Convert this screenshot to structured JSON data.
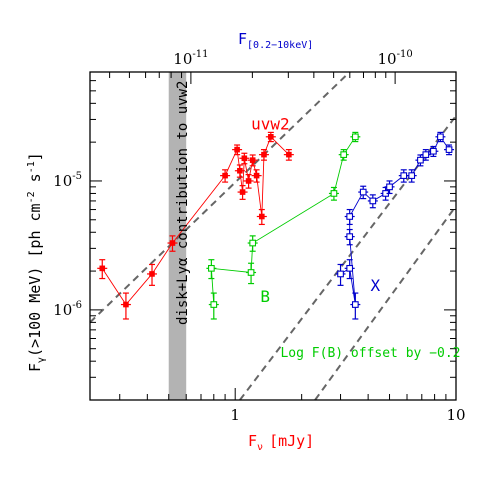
{
  "chart_data": {
    "type": "scatter",
    "x_axis": {
      "label": "F",
      "label_sub": "ν",
      "label_unit": "[mJy]",
      "scale": "log",
      "range": [
        0.22,
        10
      ],
      "ticks": [
        {
          "value": 1,
          "label": "1"
        },
        {
          "value": 10,
          "label": "10"
        }
      ],
      "color": "#ff0000"
    },
    "y_axis": {
      "label": "F",
      "label_sub": "γ",
      "label_rest": "(>100 MeV) [ph cm",
      "label_sup1": "-2",
      "label_mid": " s",
      "label_sup2": "-1",
      "label_end": "]",
      "scale": "log",
      "range": [
        2e-07,
        7e-05
      ],
      "ticks": [
        {
          "value": 1e-06,
          "base": "10",
          "exp": "-6"
        },
        {
          "value": 1e-05,
          "base": "10",
          "exp": "-5"
        }
      ]
    },
    "top_axis": {
      "label": "F",
      "label_sub": "[0.2−10keV]",
      "scale": "log",
      "color": "#0000cc",
      "ticks": [
        {
          "value": 1e-11,
          "base": "10",
          "exp": "-11",
          "at_x": 0.63
        },
        {
          "value": 1e-10,
          "base": "10",
          "exp": "-10",
          "at_x": 5.3
        }
      ]
    },
    "band": {
      "x_range": [
        0.5,
        0.6
      ],
      "label": "disk+Lyα contribution to uvw2"
    },
    "dashed_lines": [
      {
        "points": [
          [
            0.22,
            8e-07
          ],
          [
            3.3,
            7e-05
          ]
        ]
      },
      {
        "points": [
          [
            1.05,
            2e-07
          ],
          [
            10,
            3.2e-05
          ]
        ]
      },
      {
        "points": [
          [
            2.3,
            2e-07
          ],
          [
            10,
            6.4e-06
          ]
        ]
      }
    ],
    "series": [
      {
        "name": "uvw2",
        "color": "#ff0000",
        "marker": "filled",
        "label_at": [
          1.18,
          2.5e-05
        ],
        "points": [
          {
            "x": 0.25,
            "y": 2.1e-06,
            "yerr": 3.5e-07
          },
          {
            "x": 0.32,
            "y": 1.1e-06,
            "yerr": 2.5e-07
          },
          {
            "x": 0.42,
            "y": 1.9e-06,
            "yerr": 3.5e-07
          },
          {
            "x": 0.52,
            "y": 3.3e-06,
            "yerr": 4.5e-07
          },
          {
            "x": 0.9,
            "y": 1.1e-05,
            "yerr": 1.2e-06
          },
          {
            "x": 1.02,
            "y": 1.75e-05,
            "yerr": 1.5e-06
          },
          {
            "x": 1.05,
            "y": 1.2e-05,
            "yerr": 1.3e-06
          },
          {
            "x": 1.08,
            "y": 8.2e-06,
            "yerr": 1e-06
          },
          {
            "x": 1.1,
            "y": 1.5e-05,
            "yerr": 1.4e-06
          },
          {
            "x": 1.15,
            "y": 1e-05,
            "yerr": 1.2e-06
          },
          {
            "x": 1.2,
            "y": 1.45e-05,
            "yerr": 1.4e-06
          },
          {
            "x": 1.25,
            "y": 1.1e-05,
            "yerr": 1.2e-06
          },
          {
            "x": 1.32,
            "y": 5.3e-06,
            "yerr": 7e-07
          },
          {
            "x": 1.35,
            "y": 1.6e-05,
            "yerr": 1.5e-06
          },
          {
            "x": 1.45,
            "y": 2.2e-05,
            "yerr": 1.8e-06
          },
          {
            "x": 1.75,
            "y": 1.6e-05,
            "yerr": 1.5e-06
          }
        ]
      },
      {
        "name": "B",
        "color": "#00cc00",
        "marker": "open",
        "label_at": [
          1.3,
          1.15e-06
        ],
        "points": [
          {
            "x": 0.8,
            "y": 1.1e-06,
            "yerr": 2.5e-07
          },
          {
            "x": 0.78,
            "y": 2.1e-06,
            "yerr": 3.5e-07
          },
          {
            "x": 1.18,
            "y": 1.95e-06,
            "yerr": 3.5e-07
          },
          {
            "x": 1.2,
            "y": 3.3e-06,
            "yerr": 4.5e-07
          },
          {
            "x": 2.8,
            "y": 8e-06,
            "yerr": 9e-07
          },
          {
            "x": 3.1,
            "y": 1.6e-05,
            "yerr": 1.5e-06
          },
          {
            "x": 3.5,
            "y": 2.2e-05,
            "yerr": 1.8e-06
          }
        ]
      },
      {
        "name": "X",
        "color": "#0000cc",
        "marker": "open",
        "label_at": [
          4.1,
          1.4e-06
        ],
        "points": [
          {
            "x": 3.0,
            "y": 1.9e-06,
            "yerr": 3.5e-07
          },
          {
            "x": 3.3,
            "y": 2.1e-06,
            "yerr": 3.5e-07
          },
          {
            "x": 3.5,
            "y": 1.1e-06,
            "yerr": 2.5e-07
          },
          {
            "x": 3.3,
            "y": 3.7e-06,
            "yerr": 5e-07
          },
          {
            "x": 3.3,
            "y": 5.3e-06,
            "yerr": 7e-07
          },
          {
            "x": 3.8,
            "y": 8.2e-06,
            "yerr": 9e-07
          },
          {
            "x": 4.2,
            "y": 7e-06,
            "yerr": 8e-07
          },
          {
            "x": 4.8,
            "y": 8e-06,
            "yerr": 9e-07
          },
          {
            "x": 5.0,
            "y": 9e-06,
            "yerr": 1e-06
          },
          {
            "x": 5.8,
            "y": 1.1e-05,
            "yerr": 1.2e-06
          },
          {
            "x": 6.3,
            "y": 1.1e-05,
            "yerr": 1.2e-06
          },
          {
            "x": 6.9,
            "y": 1.45e-05,
            "yerr": 1.4e-06
          },
          {
            "x": 7.3,
            "y": 1.6e-05,
            "yerr": 1.5e-06
          },
          {
            "x": 7.9,
            "y": 1.7e-05,
            "yerr": 1.5e-06
          },
          {
            "x": 8.5,
            "y": 2.2e-05,
            "yerr": 1.8e-06
          },
          {
            "x": 9.3,
            "y": 1.75e-05,
            "yerr": 1.5e-06
          }
        ]
      }
    ],
    "annotations": [
      {
        "text": "Log F(B) offset by −0.2",
        "color": "#00cc00",
        "at": [
          4.1,
          4.3e-07
        ]
      }
    ]
  }
}
